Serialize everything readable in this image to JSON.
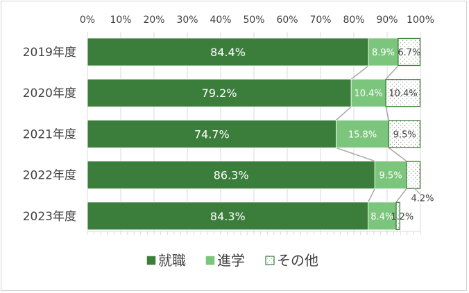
{
  "chart_data": {
    "type": "bar",
    "orientation": "horizontal",
    "stacked": "percent",
    "categories": [
      "2019年度",
      "2020年度",
      "2021年度",
      "2022年度",
      "2023年度"
    ],
    "series": [
      {
        "name": "就職",
        "values": [
          84.4,
          79.2,
          74.7,
          86.3,
          84.3
        ],
        "labels": [
          "84.4%",
          "79.2%",
          "74.7%",
          "86.3%",
          "84.3%"
        ]
      },
      {
        "name": "進学",
        "values": [
          8.9,
          10.4,
          15.8,
          9.5,
          8.4
        ],
        "labels": [
          "8.9%",
          "10.4%",
          "15.8%",
          "9.5%",
          "8.4%"
        ]
      },
      {
        "name": "その他",
        "values": [
          6.7,
          10.4,
          9.5,
          4.2,
          1.2
        ],
        "labels": [
          "6.7%",
          "10.4%",
          "9.5%",
          "4.2%",
          "1.2%"
        ]
      }
    ],
    "x_ticks": [
      "0%",
      "10%",
      "20%",
      "30%",
      "40%",
      "50%",
      "60%",
      "70%",
      "80%",
      "90%",
      "100%"
    ],
    "xlim": [
      0,
      100
    ],
    "axis_position": "top",
    "series_lines": true,
    "legend_position": "bottom",
    "colors": {
      "employment": "#3b7d3b",
      "advancement": "#7cc57c",
      "other_border": "#3b7d3b",
      "other_dots": "#9aa69a",
      "series_lines": "#a6a6a6",
      "gridline": "#d9d9d9",
      "text": "#404040"
    }
  }
}
